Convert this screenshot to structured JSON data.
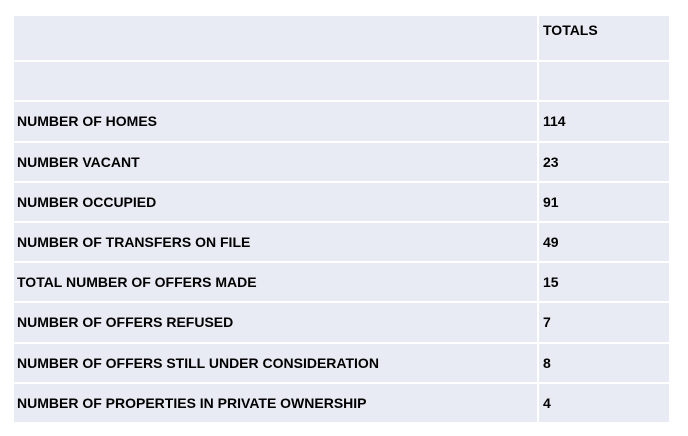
{
  "table": {
    "header": {
      "label": "",
      "totals": "TOTALS"
    },
    "rows": [
      {
        "label": "",
        "value": ""
      },
      {
        "label": "NUMBER OF HOMES",
        "value": "114"
      },
      {
        "label": "NUMBER VACANT",
        "value": "23"
      },
      {
        "label": "NUMBER OCCUPIED",
        "value": "91"
      },
      {
        "label": "NUMBER OF TRANSFERS ON FILE",
        "value": "49"
      },
      {
        "label": "TOTAL NUMBER OF OFFERS MADE",
        "value": "15"
      },
      {
        "label": "NUMBER OF OFFERS REFUSED",
        "value": "7"
      },
      {
        "label": "NUMBER OF OFFERS STILL UNDER CONSIDERATION",
        "value": "8"
      },
      {
        "label": "NUMBER OF PROPERTIES IN PRIVATE OWNERSHIP",
        "value": "4"
      }
    ]
  }
}
